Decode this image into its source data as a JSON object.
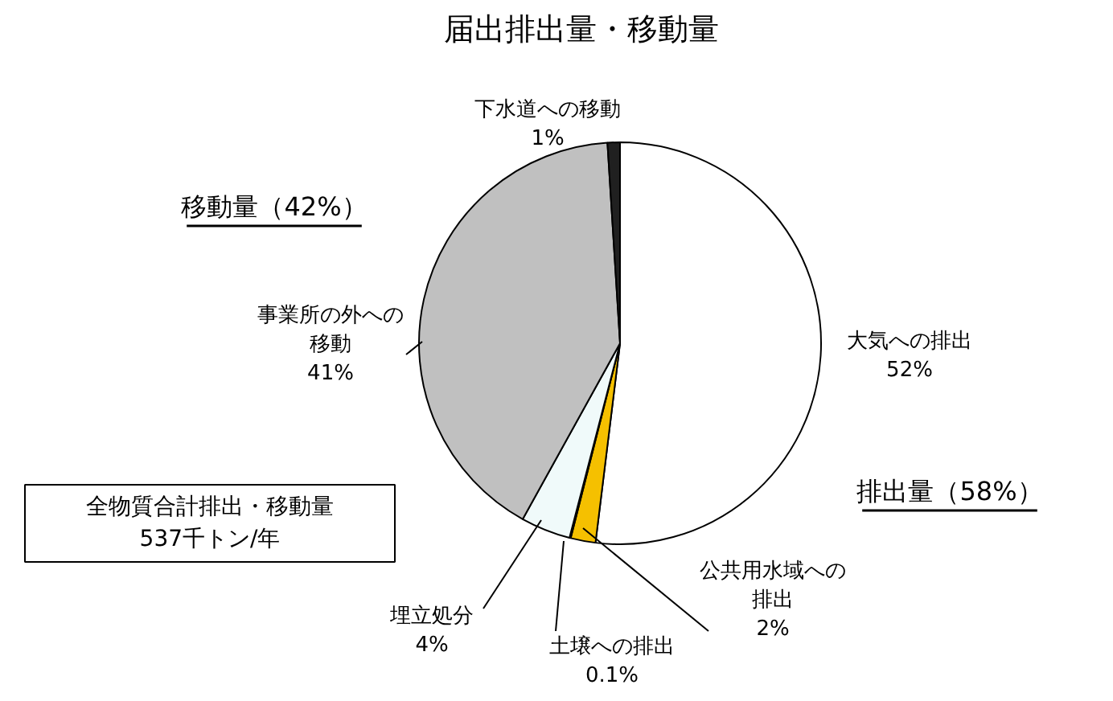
{
  "chart_data": {
    "type": "pie",
    "title": "届出排出量・移動量",
    "categories": [
      "大気への排出",
      "公共用水域への排出",
      "土壌への排出",
      "埋立処分",
      "事業所の外への移動",
      "下水道への移動"
    ],
    "values": [
      52,
      2,
      0.1,
      4,
      41,
      1
    ],
    "value_labels": [
      "52%",
      "2%",
      "0.1%",
      "4%",
      "41%",
      "1%"
    ],
    "colors": [
      "#ffffff",
      "#f5c000",
      "#ffffff",
      "#f0fafa",
      "#c0c0c0",
      "#202020"
    ],
    "annotations": [
      "移動量（42%）",
      "排出量（58%）",
      "全物質合計排出・移動量\n537千トン/年"
    ]
  }
}
